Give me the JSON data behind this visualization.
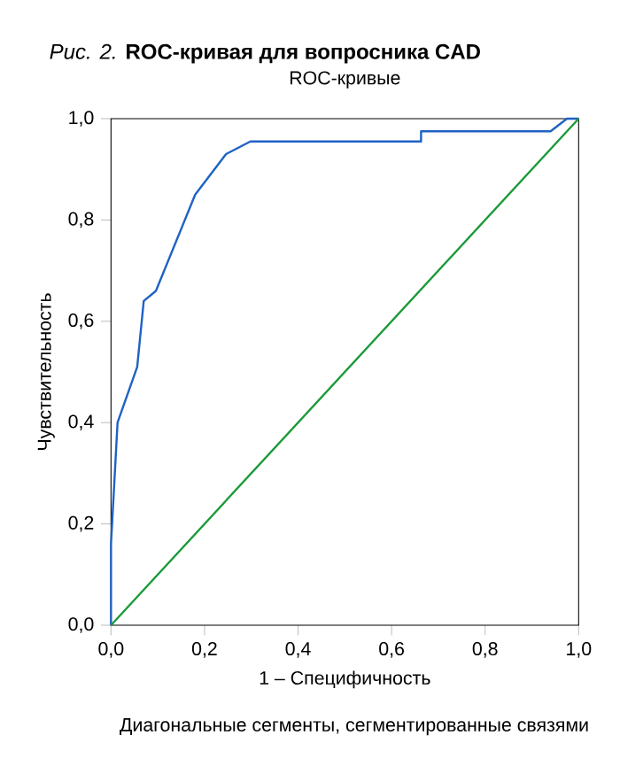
{
  "chart_data": {
    "type": "line",
    "title": "*Рис. 2.* **ROC-кривая для вопросника CAD**",
    "subtitle": "ROC-кривые",
    "xlabel": "1 – Специфичность",
    "ylabel": "Чувствительность",
    "annotations": [
      "Диагональные сегменты, сегментированные связями"
    ],
    "xlim": [
      0,
      1
    ],
    "ylim": [
      0,
      1
    ],
    "xticks": [
      {
        "value": 0,
        "label": "0,0"
      },
      {
        "value": 0.2,
        "label": "0,2"
      },
      {
        "value": 0.4,
        "label": "0,4"
      },
      {
        "value": 0.6,
        "label": "0,6"
      },
      {
        "value": 0.8,
        "label": "0,8"
      },
      {
        "value": 1,
        "label": "1,0"
      }
    ],
    "yticks": [
      {
        "value": 0,
        "label": "0,0"
      },
      {
        "value": 0.2,
        "label": "0,2"
      },
      {
        "value": 0.4,
        "label": "0,4"
      },
      {
        "value": 0.6,
        "label": "0,6"
      },
      {
        "value": 0.8,
        "label": "0,8"
      },
      {
        "value": 1,
        "label": "1,0"
      }
    ],
    "grid": false,
    "legend": false,
    "marker": "none",
    "line_style": "solid",
    "series": [
      {
        "color": "#1f62c4",
        "x": [
          0,
          0,
          0.014,
          0.056,
          0.07,
          0.096,
          0.18,
          0.246,
          0.298,
          0.663,
          0.663,
          0.94,
          0.975,
          1
        ],
        "values": [
          0,
          0.16,
          0.4,
          0.51,
          0.64,
          0.66,
          0.85,
          0.93,
          0.955,
          0.955,
          0.975,
          0.975,
          1,
          1
        ]
      },
      {
        "color": "#1a9a3a",
        "x": [
          0,
          1
        ],
        "values": [
          0,
          1
        ]
      }
    ]
  }
}
